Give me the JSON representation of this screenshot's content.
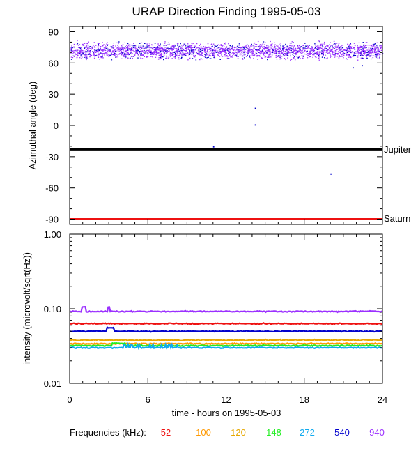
{
  "chart_data": [
    {
      "type": "scatter",
      "title": "URAP Direction Finding  1995-05-03",
      "xlabel": "",
      "ylabel": "Azimuthal angle (deg)",
      "xlim": [
        0,
        24
      ],
      "ylim": [
        -95,
        95
      ],
      "yticks": [
        90,
        60,
        30,
        0,
        -30,
        -60,
        -90
      ],
      "yticklabels": [
        "90",
        "60",
        "30",
        "0",
        "-30",
        "-60",
        "-90"
      ],
      "grid": false,
      "reference_lines": [
        {
          "name": "Jupiter",
          "y": -23,
          "color": "#000000"
        },
        {
          "name": "Saturn",
          "y": -90,
          "color": "#ee1111"
        }
      ],
      "band": {
        "y_center": 72,
        "y_spread": 8,
        "colors": [
          "#9b30ff",
          "#0000cc"
        ]
      },
      "outliers": [
        {
          "x": 14.2,
          "y": 1
        },
        {
          "x": 14.2,
          "y": 17
        },
        {
          "x": 11.0,
          "y": -20
        },
        {
          "x": 20.0,
          "y": -46
        },
        {
          "x": 21.7,
          "y": 56
        },
        {
          "x": 22.4,
          "y": 58
        }
      ]
    },
    {
      "type": "line",
      "xlabel": "time - hours on 1995-05-03",
      "ylabel": "intensity (microvolt/sqrt(Hz))",
      "xlim": [
        0,
        24
      ],
      "ylim": [
        0.01,
        1.0
      ],
      "yscale": "log",
      "xticks": [
        0,
        6,
        12,
        18,
        24
      ],
      "xticklabels": [
        "0",
        "6",
        "12",
        "18",
        "24"
      ],
      "yticks": [
        1.0,
        0.1,
        0.01
      ],
      "yticklabels": [
        "1.00",
        "0.10",
        "0.01"
      ],
      "grid": false,
      "series": [
        {
          "name": "940",
          "color": "#9b30ff",
          "level": 0.092
        },
        {
          "name": "52",
          "color": "#ee1111",
          "level": 0.063
        },
        {
          "name": "540",
          "color": "#0000cc",
          "level": 0.05
        },
        {
          "name": "120",
          "color": "#e6a800",
          "level": 0.038
        },
        {
          "name": "100",
          "color": "#ff9900",
          "level": 0.034
        },
        {
          "name": "148",
          "color": "#22ee22",
          "level": 0.032
        },
        {
          "name": "272",
          "color": "#11aaee",
          "level": 0.03
        }
      ]
    }
  ],
  "legend": {
    "label": "Frequencies (kHz):",
    "items": [
      {
        "text": "52",
        "color": "#ee1111"
      },
      {
        "text": "100",
        "color": "#ff9900"
      },
      {
        "text": "120",
        "color": "#e6a800"
      },
      {
        "text": "148",
        "color": "#22ee22"
      },
      {
        "text": "272",
        "color": "#11aaee"
      },
      {
        "text": "540",
        "color": "#0000cc"
      },
      {
        "text": "940",
        "color": "#9b30ff"
      }
    ]
  }
}
